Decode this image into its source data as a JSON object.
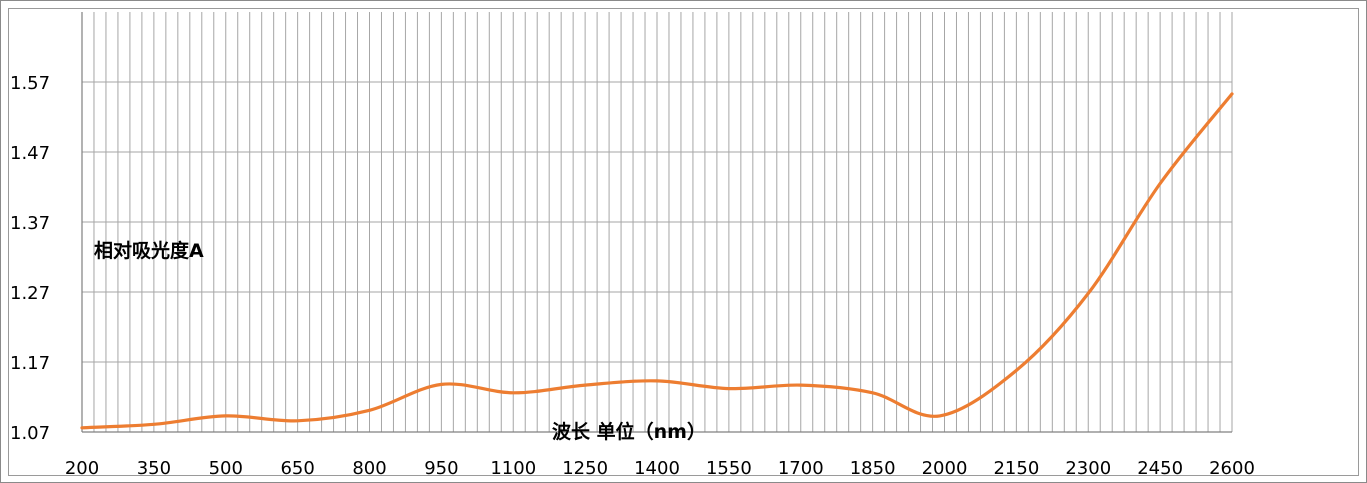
{
  "chart_data": {
    "type": "line",
    "title": "",
    "xlabel": "波长 单位（nm）",
    "ylabel": "相对吸光度A",
    "xlim": [
      200,
      2600
    ],
    "ylim": [
      1.07,
      1.67
    ],
    "x_ticks": [
      "200",
      "350",
      "500",
      "650",
      "800",
      "950",
      "1100",
      "1250",
      "1400",
      "1550",
      "1700",
      "1850",
      "2000",
      "2150",
      "2300",
      "2450",
      "2600"
    ],
    "y_ticks": [
      "1.07",
      "1.17",
      "1.27",
      "1.37",
      "1.47",
      "1.57"
    ],
    "grid": {
      "vertical": true,
      "horizontal": true
    },
    "legend": "none",
    "colors": {
      "line": "#ED7D31",
      "grid": "#a6a6a6",
      "axis": "#808080"
    },
    "series": [
      {
        "x": [
          200,
          350,
          500,
          650,
          800,
          950,
          1100,
          1250,
          1400,
          1550,
          1700,
          1850,
          1990,
          2150,
          2300,
          2450,
          2600
        ],
        "y": [
          1.076,
          1.081,
          1.093,
          1.086,
          1.101,
          1.138,
          1.126,
          1.137,
          1.143,
          1.132,
          1.137,
          1.126,
          1.093,
          1.158,
          1.268,
          1.425,
          1.553
        ]
      }
    ]
  }
}
